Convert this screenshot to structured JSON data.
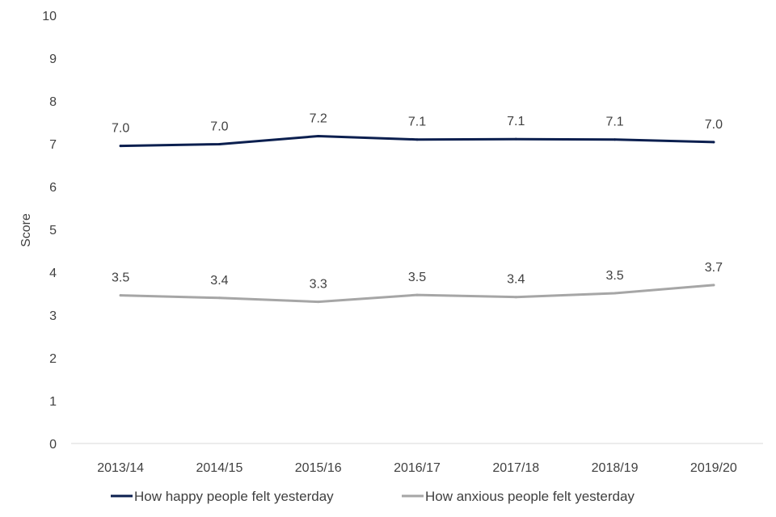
{
  "chart_data": {
    "type": "line",
    "title": "",
    "xlabel": "",
    "ylabel": "Score",
    "ylim": [
      0,
      10
    ],
    "yticks": [
      "0",
      "1",
      "2",
      "3",
      "4",
      "5",
      "6",
      "7",
      "8",
      "9",
      "10"
    ],
    "categories": [
      "2013/14",
      "2014/15",
      "2015/16",
      "2016/17",
      "2017/18",
      "2018/19",
      "2019/20"
    ],
    "series": [
      {
        "name": "How happy people felt yesterday",
        "color": "#0b1f4f",
        "values": [
          6.95,
          6.99,
          7.18,
          7.1,
          7.11,
          7.1,
          7.04
        ],
        "labels": [
          "7.0",
          "7.0",
          "7.2",
          "7.1",
          "7.1",
          "7.1",
          "7.0"
        ]
      },
      {
        "name": "How anxious people felt yesterday",
        "color": "#a6a6a6",
        "values": [
          3.46,
          3.4,
          3.31,
          3.47,
          3.42,
          3.51,
          3.7
        ],
        "labels": [
          "3.5",
          "3.4",
          "3.3",
          "3.5",
          "3.4",
          "3.5",
          "3.7"
        ]
      }
    ],
    "grid": false,
    "legend_position": "bottom"
  }
}
